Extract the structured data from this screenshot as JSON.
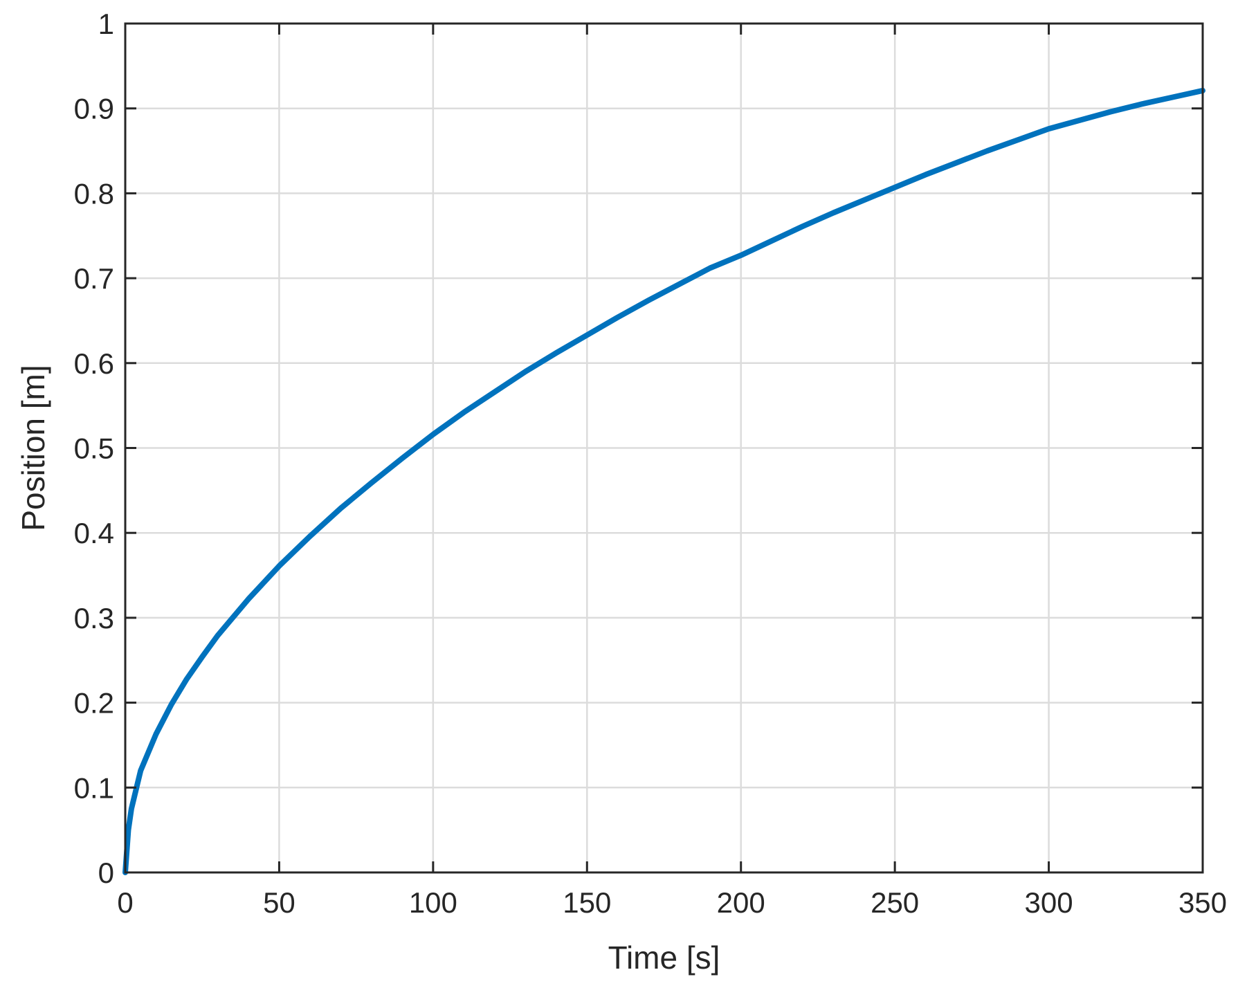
{
  "chart_data": {
    "type": "line",
    "title": "",
    "xlabel": "Time [s]",
    "ylabel": "Position [m]",
    "xlim": [
      0,
      350
    ],
    "ylim": [
      0,
      1
    ],
    "xticks": [
      0,
      50,
      100,
      150,
      200,
      250,
      300,
      350
    ],
    "yticks": [
      0,
      0.1,
      0.2,
      0.3,
      0.4,
      0.5,
      0.6,
      0.7,
      0.8,
      0.9,
      1
    ],
    "xtick_labels": [
      "0",
      "50",
      "100",
      "150",
      "200",
      "250",
      "300",
      "350"
    ],
    "ytick_labels": [
      "0",
      "0.1",
      "0.2",
      "0.3",
      "0.4",
      "0.5",
      "0.6",
      "0.7",
      "0.8",
      "0.9",
      "1"
    ],
    "grid": true,
    "box": true,
    "series": [
      {
        "color": "#0072BD",
        "x": [
          0,
          1,
          2,
          5,
          10,
          15,
          20,
          25,
          30,
          40,
          50,
          60,
          70,
          80,
          90,
          100,
          110,
          120,
          130,
          140,
          150,
          160,
          170,
          180,
          190,
          200,
          210,
          220,
          230,
          240,
          250,
          260,
          270,
          280,
          290,
          300,
          310,
          320,
          330,
          340,
          350
        ],
        "y": [
          0,
          0.05,
          0.075,
          0.12,
          0.163,
          0.198,
          0.228,
          0.254,
          0.279,
          0.322,
          0.361,
          0.396,
          0.429,
          0.459,
          0.488,
          0.516,
          0.542,
          0.566,
          0.59,
          0.612,
          0.633,
          0.654,
          0.674,
          0.693,
          0.712,
          0.727,
          0.744,
          0.761,
          0.777,
          0.792,
          0.807,
          0.822,
          0.836,
          0.85,
          0.863,
          0.876,
          0.886,
          0.896,
          0.905,
          0.913,
          0.921
        ]
      }
    ]
  }
}
